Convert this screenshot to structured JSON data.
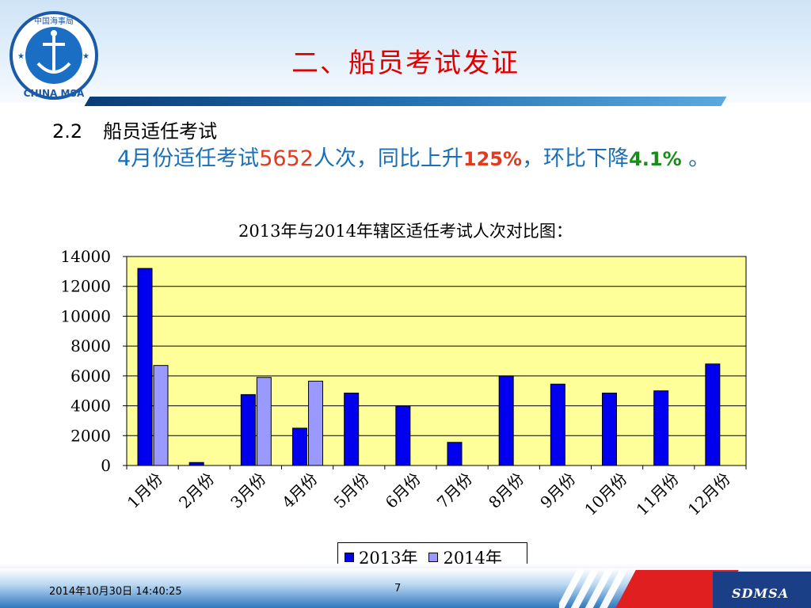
{
  "logo": {
    "top_text": "中国海事局",
    "bottom_text": "CHINA MSA"
  },
  "slide_title": "二、船员考试发证",
  "section": {
    "number": "2.2",
    "heading": "船员适任考试"
  },
  "paragraph": {
    "p1": "4月份适任考试",
    "count": "5652",
    "p2": "人次，同比上升",
    "yoy": "125%",
    "p3": "，环比下降",
    "mom": "4.1%",
    "p4": " 。"
  },
  "chart_data": {
    "type": "bar",
    "title": "2013年与2014年辖区适任考试人次对比图：",
    "categories": [
      "1月份",
      "2月份",
      "3月份",
      "4月份",
      "5月份",
      "6月份",
      "7月份",
      "8月份",
      "9月份",
      "10月份",
      "11月份",
      "12月份"
    ],
    "series": [
      {
        "name": "2013年",
        "color": "#0000ee",
        "values": [
          13200,
          200,
          4750,
          2500,
          4850,
          4000,
          1550,
          6000,
          5450,
          4850,
          5000,
          6800
        ]
      },
      {
        "name": "2014年",
        "color": "#9999ff",
        "values": [
          6700,
          0,
          5900,
          5650,
          0,
          0,
          0,
          0,
          0,
          0,
          0,
          0
        ]
      }
    ],
    "ylim": [
      0,
      14000
    ],
    "yticks": [
      "0",
      "2000",
      "4000",
      "6000",
      "8000",
      "10000",
      "12000",
      "14000"
    ],
    "plot_background": "#ffff99",
    "grid": true,
    "legend_position": "bottom-center"
  },
  "footer": {
    "date": "2014年10月30日  14:40:25",
    "page": "7",
    "brand": "SDMSA"
  }
}
